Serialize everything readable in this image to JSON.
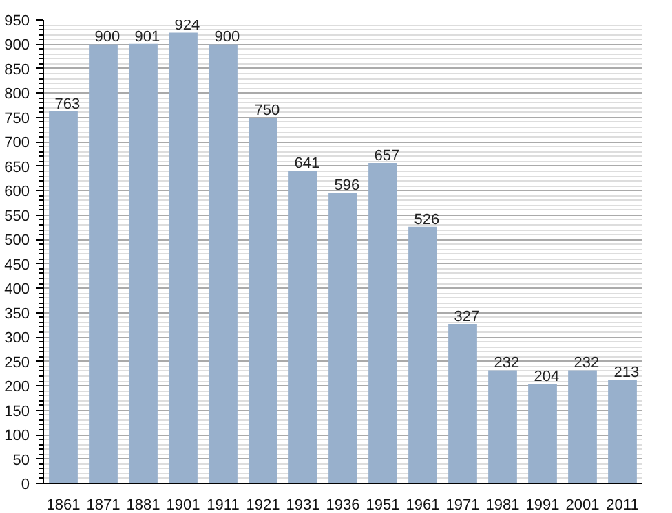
{
  "chart_data": {
    "type": "bar",
    "categories": [
      "1861",
      "1871",
      "1881",
      "1901",
      "1911",
      "1921",
      "1931",
      "1936",
      "1951",
      "1961",
      "1971",
      "1981",
      "1991",
      "2001",
      "2011"
    ],
    "values": [
      763,
      900,
      901,
      924,
      900,
      750,
      641,
      596,
      657,
      526,
      327,
      232,
      204,
      232,
      213
    ],
    "color": "#98b0cc",
    "ylim": [
      0,
      950
    ],
    "yticks": [
      0,
      50,
      100,
      150,
      200,
      250,
      300,
      350,
      400,
      450,
      500,
      550,
      600,
      650,
      700,
      750,
      800,
      850,
      900,
      950
    ],
    "grid": "y",
    "data_labels": true
  }
}
